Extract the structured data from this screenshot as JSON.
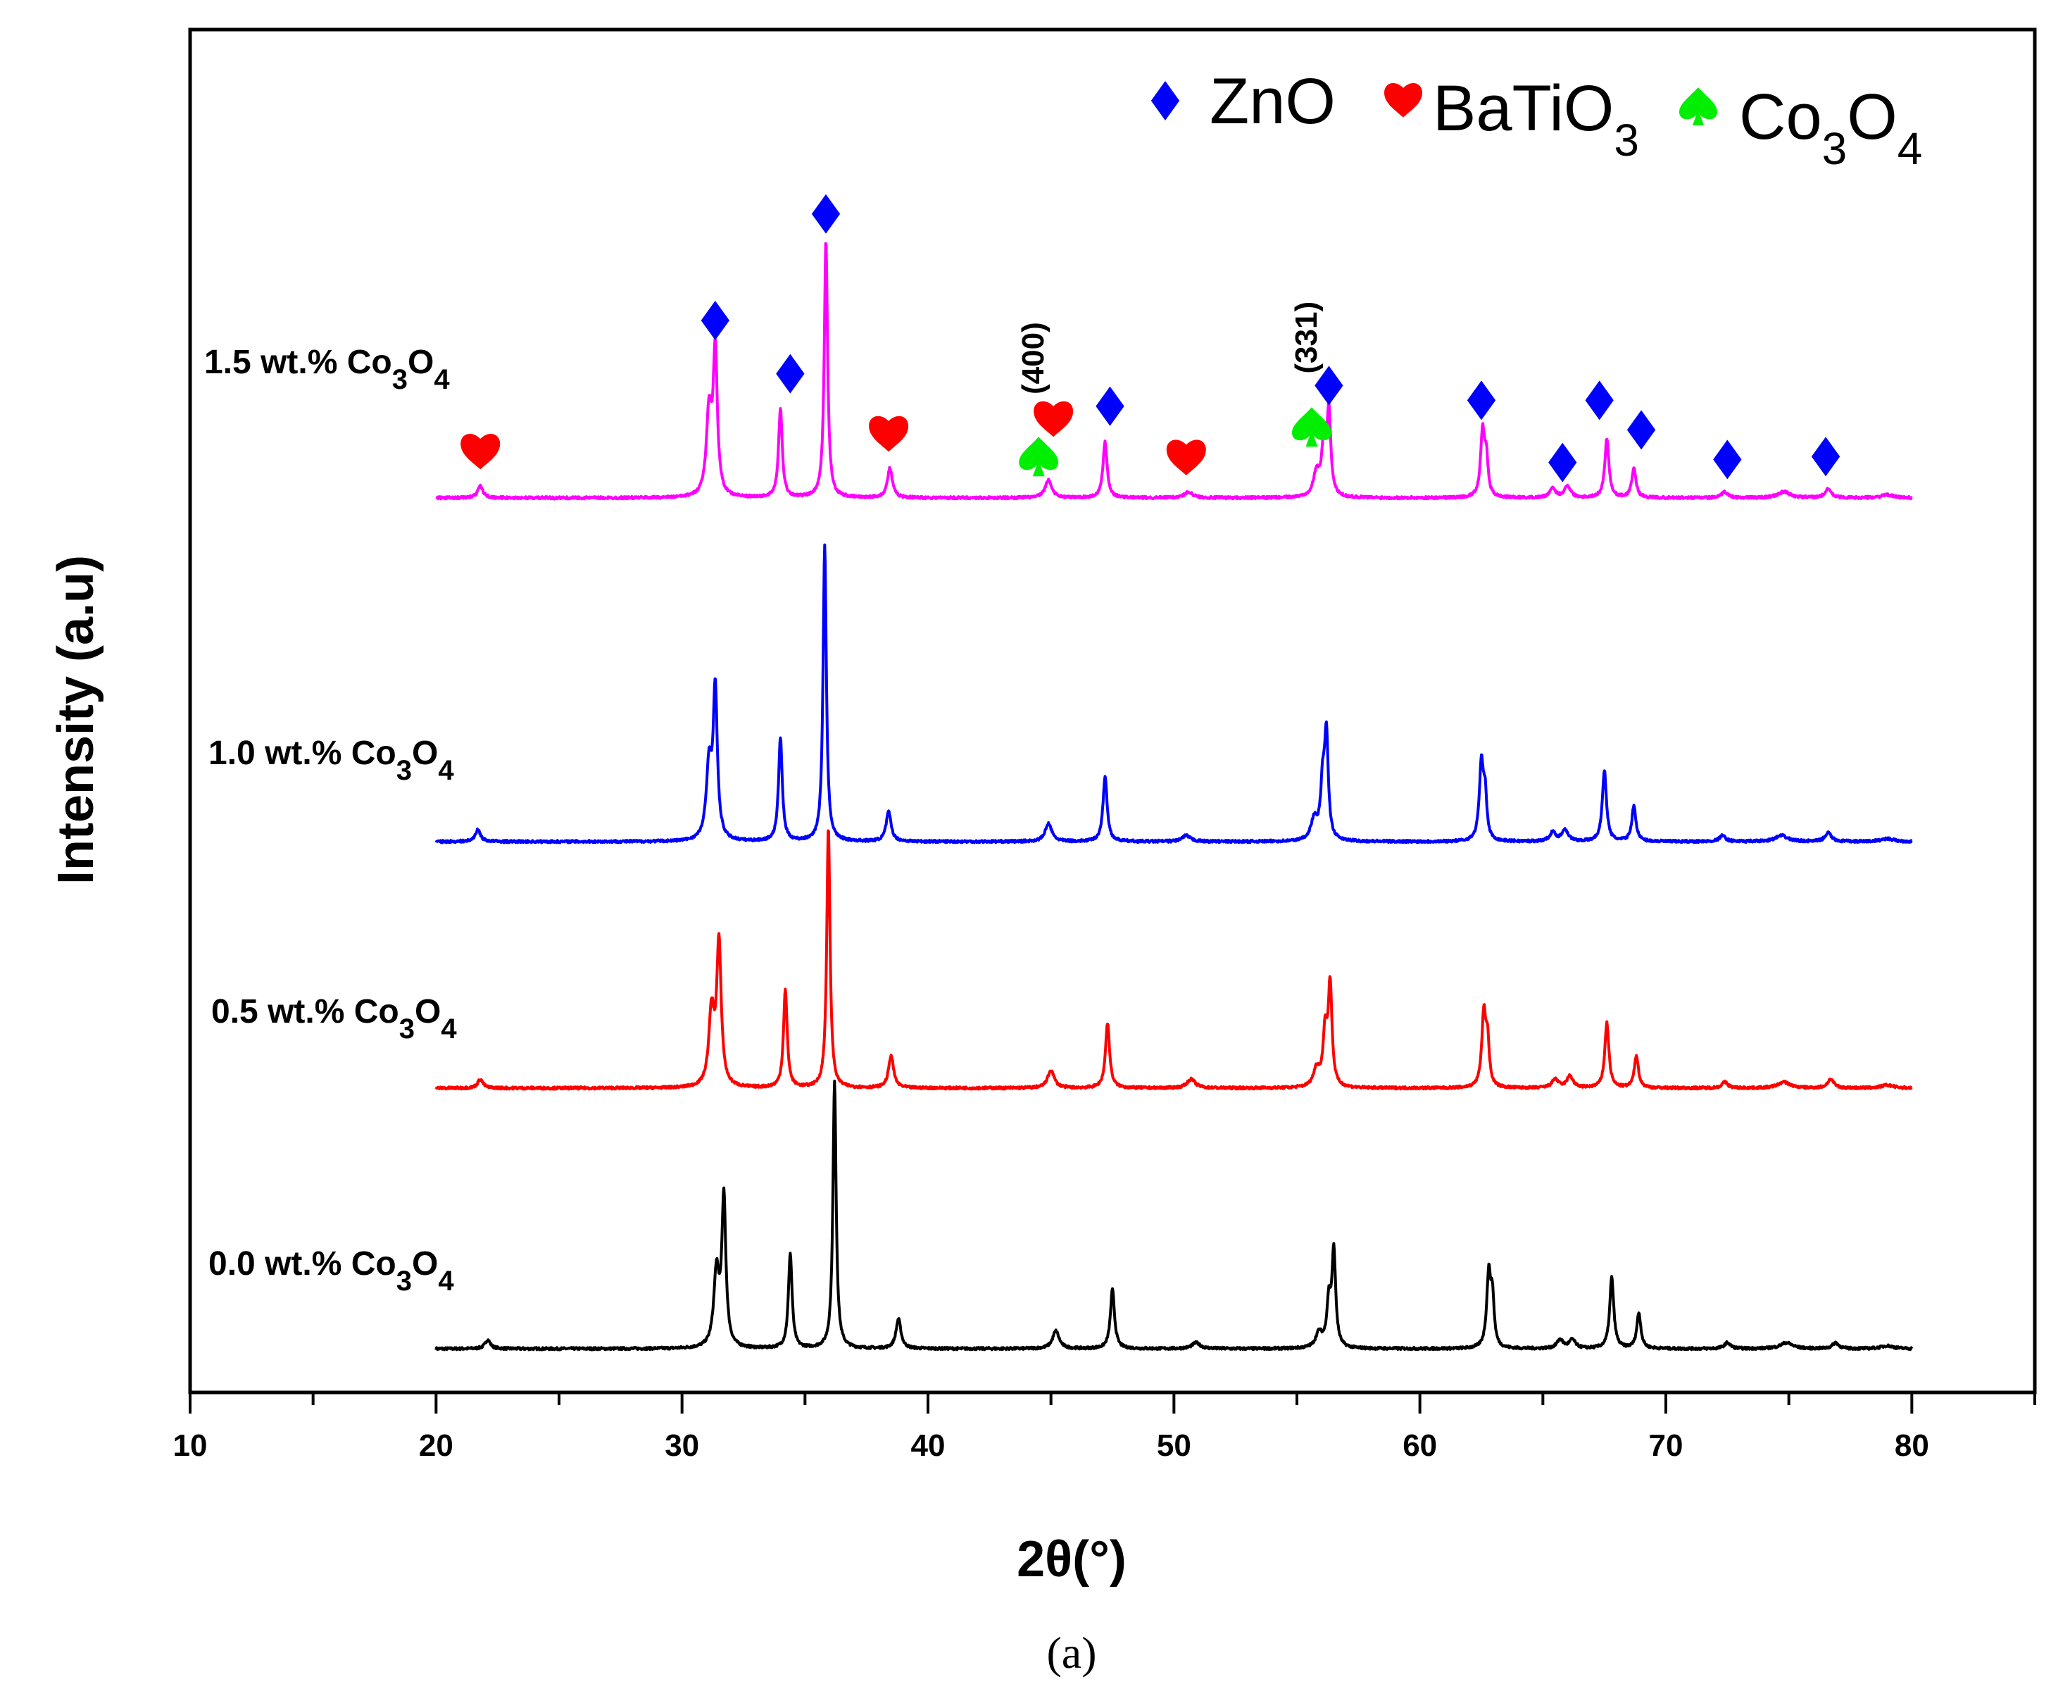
{
  "chart_data": {
    "type": "line",
    "xlabel": "2θ(°)",
    "ylabel": "Intensity (a.u)",
    "caption": "(a)",
    "xlim": [
      10,
      85
    ],
    "x_ticks": [
      10,
      20,
      30,
      40,
      50,
      60,
      70,
      80
    ],
    "x_tick_labels": [
      "10",
      "20",
      "30",
      "40",
      "50",
      "60",
      "70",
      "80"
    ],
    "x_minor_step": 5,
    "colors": {
      "s0": "#000000",
      "s05": "#ff0000",
      "s10": "#0000ff",
      "s15": "#ff00ff",
      "zno": "#0000ff",
      "batio3": "#ff0000",
      "co3o4": "#00ee00"
    },
    "legend": {
      "position": "top-right",
      "entries": [
        {
          "marker": "diamond",
          "color": "#0000ff",
          "label": "ZnO"
        },
        {
          "marker": "heart",
          "color": "#ff0000",
          "label": "BaTiO",
          "sub": "3"
        },
        {
          "marker": "spade",
          "color": "#00ee00",
          "label": "Co",
          "sub": "3",
          "label2": "O",
          "sub2": "4"
        }
      ]
    },
    "series": [
      {
        "name": "0.0 wt.% Co3O4",
        "label_parts": [
          "0.0 wt.% Co",
          "3",
          "O",
          "4"
        ],
        "color": "#000000",
        "baseline": 0,
        "peaks": [
          [
            22.1,
            3,
            0.13
          ],
          [
            31.4,
            25,
            0.13
          ],
          [
            31.7,
            50,
            0.1
          ],
          [
            34.4,
            32,
            0.09
          ],
          [
            36.2,
            90,
            0.08
          ],
          [
            38.8,
            10,
            0.12
          ],
          [
            45.2,
            6,
            0.16
          ],
          [
            47.5,
            20,
            0.1
          ],
          [
            50.9,
            2,
            0.2
          ],
          [
            55.9,
            5,
            0.16
          ],
          [
            56.3,
            15,
            0.1
          ],
          [
            56.5,
            32,
            0.09
          ],
          [
            62.8,
            25,
            0.1
          ],
          [
            62.95,
            15,
            0.08
          ],
          [
            65.7,
            3,
            0.15
          ],
          [
            66.2,
            3,
            0.15
          ],
          [
            67.8,
            24,
            0.1
          ],
          [
            68.9,
            12,
            0.1
          ],
          [
            72.5,
            2,
            0.15
          ],
          [
            74.9,
            2,
            0.3
          ],
          [
            76.9,
            2,
            0.15
          ],
          [
            79,
            1,
            0.3
          ]
        ]
      },
      {
        "name": "0.5 wt.% Co3O4",
        "label_parts": [
          "0.5 wt.% Co",
          "3",
          "O",
          "4"
        ],
        "color": "#ff0000",
        "baseline": 1,
        "peaks": [
          [
            21.8,
            3,
            0.13
          ],
          [
            31.2,
            25,
            0.13
          ],
          [
            31.5,
            48,
            0.11
          ],
          [
            34.2,
            33,
            0.09
          ],
          [
            35.95,
            88,
            0.08
          ],
          [
            38.5,
            11,
            0.12
          ],
          [
            45,
            6,
            0.16
          ],
          [
            47.3,
            22,
            0.1
          ],
          [
            50.7,
            3,
            0.2
          ],
          [
            55.8,
            6,
            0.16
          ],
          [
            56.15,
            18,
            0.1
          ],
          [
            56.35,
            34,
            0.09
          ],
          [
            62.6,
            25,
            0.1
          ],
          [
            62.75,
            14,
            0.08
          ],
          [
            65.5,
            3,
            0.15
          ],
          [
            66.1,
            4,
            0.15
          ],
          [
            67.6,
            22,
            0.1
          ],
          [
            68.8,
            11,
            0.1
          ],
          [
            72.4,
            2,
            0.15
          ],
          [
            74.8,
            2,
            0.3
          ],
          [
            76.7,
            3,
            0.15
          ],
          [
            79,
            1,
            0.3
          ]
        ]
      },
      {
        "name": "1.0 wt.% Co3O4",
        "label_parts": [
          "1.0 wt.% Co",
          "3",
          "O",
          "4"
        ],
        "color": "#0000ff",
        "baseline": 2,
        "peaks": [
          [
            21.7,
            4,
            0.13
          ],
          [
            31.1,
            25,
            0.13
          ],
          [
            31.35,
            50,
            0.1
          ],
          [
            34,
            35,
            0.09
          ],
          [
            35.8,
            100,
            0.08
          ],
          [
            38.4,
            10,
            0.12
          ],
          [
            44.9,
            6,
            0.16
          ],
          [
            47.2,
            22,
            0.1
          ],
          [
            50.5,
            2,
            0.2
          ],
          [
            55.7,
            7,
            0.16
          ],
          [
            56.05,
            18,
            0.1
          ],
          [
            56.2,
            34,
            0.09
          ],
          [
            62.5,
            26,
            0.1
          ],
          [
            62.65,
            14,
            0.08
          ],
          [
            65.4,
            3,
            0.15
          ],
          [
            65.9,
            4,
            0.15
          ],
          [
            67.5,
            24,
            0.1
          ],
          [
            68.7,
            12,
            0.1
          ],
          [
            72.3,
            2,
            0.15
          ],
          [
            74.7,
            2,
            0.3
          ],
          [
            76.6,
            3,
            0.15
          ],
          [
            79,
            1,
            0.3
          ]
        ]
      },
      {
        "name": "1.5 wt.% Co3O4",
        "label_parts": [
          "1.5 wt.% Co",
          "3",
          "O",
          "4"
        ],
        "color": "#ff00ff",
        "baseline": 3,
        "peaks": [
          [
            21.8,
            4,
            0.13
          ],
          [
            31.1,
            28,
            0.13
          ],
          [
            31.35,
            48,
            0.1
          ],
          [
            34,
            30,
            0.09
          ],
          [
            35.85,
            87,
            0.08
          ],
          [
            38.45,
            10,
            0.12
          ],
          [
            44.9,
            6,
            0.16
          ],
          [
            47.2,
            19,
            0.1
          ],
          [
            50.6,
            2,
            0.2
          ],
          [
            55.8,
            8,
            0.16
          ],
          [
            56.1,
            18,
            0.1
          ],
          [
            56.3,
            28,
            0.09
          ],
          [
            62.55,
            22,
            0.1
          ],
          [
            62.7,
            12,
            0.08
          ],
          [
            65.4,
            3,
            0.15
          ],
          [
            66,
            4,
            0.15
          ],
          [
            67.6,
            20,
            0.1
          ],
          [
            68.7,
            10,
            0.1
          ],
          [
            72.4,
            2,
            0.15
          ],
          [
            74.8,
            2,
            0.3
          ],
          [
            76.6,
            3,
            0.15
          ],
          [
            79,
            1,
            0.3
          ]
        ]
      }
    ],
    "phase_markers": [
      {
        "phase": "BaTiO3",
        "marker": "heart",
        "x": 21.8,
        "y": 16
      },
      {
        "phase": "ZnO",
        "marker": "diamond",
        "x": 31.35,
        "y": 60
      },
      {
        "phase": "ZnO",
        "marker": "diamond",
        "x": 34.4,
        "y": 42
      },
      {
        "phase": "ZnO",
        "marker": "diamond",
        "x": 35.85,
        "y": 96
      },
      {
        "phase": "BaTiO3",
        "marker": "heart",
        "x": 38.4,
        "y": 22
      },
      {
        "phase": "Co3O4",
        "marker": "spade",
        "x": 44.5,
        "y": 14
      },
      {
        "phase": "BaTiO3",
        "marker": "heart",
        "x": 45.1,
        "y": 27
      },
      {
        "phase": "ZnO",
        "marker": "diamond",
        "x": 47.4,
        "y": 31
      },
      {
        "phase": "BaTiO3",
        "marker": "heart",
        "x": 50.5,
        "y": 14
      },
      {
        "phase": "Co3O4",
        "marker": "spade",
        "x": 55.6,
        "y": 24
      },
      {
        "phase": "ZnO",
        "marker": "diamond",
        "x": 56.3,
        "y": 38
      },
      {
        "phase": "ZnO",
        "marker": "diamond",
        "x": 62.5,
        "y": 33
      },
      {
        "phase": "ZnO",
        "marker": "diamond",
        "x": 65.8,
        "y": 12
      },
      {
        "phase": "ZnO",
        "marker": "diamond",
        "x": 67.3,
        "y": 33
      },
      {
        "phase": "ZnO",
        "marker": "diamond",
        "x": 69,
        "y": 23
      },
      {
        "phase": "ZnO",
        "marker": "diamond",
        "x": 72.5,
        "y": 13
      },
      {
        "phase": "ZnO",
        "marker": "diamond",
        "x": 76.5,
        "y": 14
      }
    ],
    "annotations": [
      {
        "text": "(400)",
        "x": 44.7,
        "y": 35,
        "rotate": -90
      },
      {
        "text": "(331)",
        "x": 55.8,
        "y": 42,
        "rotate": -90
      }
    ]
  }
}
